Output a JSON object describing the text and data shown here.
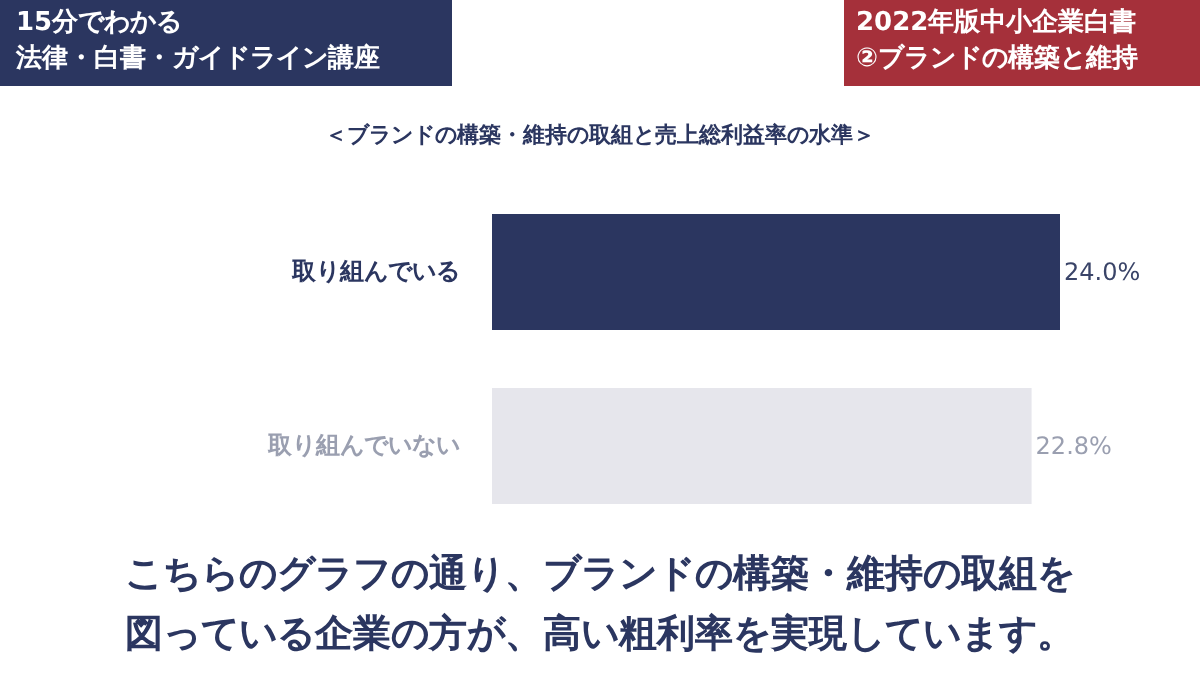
{
  "chart_data": {
    "type": "bar",
    "orientation": "horizontal",
    "title": "＜ブランドの構築・維持の取組と売上総利益率の水準＞",
    "categories": [
      "取り組んでいる",
      "取り組んでいない"
    ],
    "values": [
      24.0,
      22.8
    ],
    "colors": [
      "#2b3660",
      "#e6e6ec"
    ],
    "value_labels": [
      "24.0%",
      "22.8%"
    ],
    "grid": false,
    "annotations": [
      "15分でわかる",
      "法律・白書・ガイドライン講座",
      "2022年版中小企業白書",
      "②ブランドの構築と維持",
      "こちらのグラフの通り、ブランドの構築・維持の取組を",
      "図っている企業の方が、高い粗利率を実現しています。"
    ]
  }
}
